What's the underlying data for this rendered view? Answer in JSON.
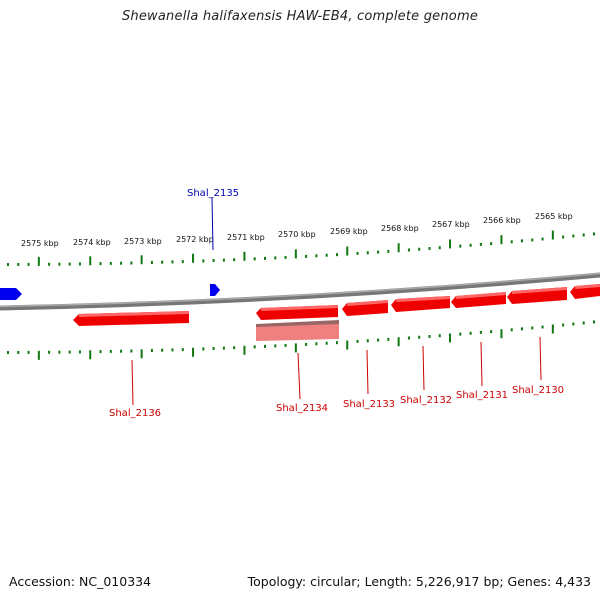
{
  "title": "Shewanella halifaxensis HAW-EB4, complete genome",
  "footer": {
    "accession": "Accession: NC_010334",
    "summary": "Topology: circular; Length: 5,226,917 bp; Genes: 4,433"
  },
  "colors": {
    "backbone": "#888888",
    "forward_gene": "#0000ee",
    "reverse_gene": "#ee0000",
    "reverse_gene_highlight": "#f08080",
    "tick": "#117711",
    "label_blue": "#0000aa",
    "label_red": "#cc0000"
  },
  "scale": {
    "unit": "kbp",
    "labels": [
      "2575 kbp",
      "2574 kbp",
      "2573 kbp",
      "2572 kbp",
      "2571 kbp",
      "2570 kbp",
      "2569 kbp",
      "2568 kbp",
      "2567 kbp",
      "2566 kbp",
      "2565 kbp"
    ]
  },
  "genes": [
    {
      "id": "Shal_2136",
      "strand": "reverse"
    },
    {
      "id": "Shal_2135",
      "strand": "forward"
    },
    {
      "id": "Shal_2134",
      "strand": "reverse"
    },
    {
      "id": "Shal_2133",
      "strand": "reverse"
    },
    {
      "id": "Shal_2132",
      "strand": "reverse"
    },
    {
      "id": "Shal_2131",
      "strand": "reverse"
    },
    {
      "id": "Shal_2130",
      "strand": "reverse"
    }
  ]
}
